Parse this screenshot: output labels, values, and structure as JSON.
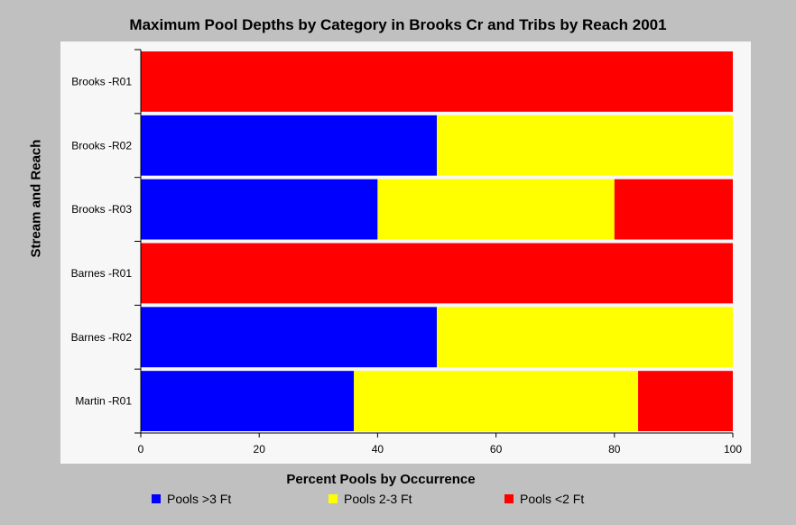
{
  "chart_data": {
    "type": "bar",
    "orientation": "horizontal",
    "stacked": true,
    "title": "Maximum Pool Depths by Category in Brooks Cr and Tribs by Reach 2001",
    "xlabel": "Percent Pools by Occurrence",
    "ylabel": "Stream and Reach",
    "xlim": [
      0,
      100
    ],
    "xticks": [
      0,
      20,
      40,
      60,
      80,
      100
    ],
    "categories": [
      "Brooks -R01",
      "Brooks -R02",
      "Brooks -R03",
      "Barnes -R01",
      "Barnes -R02",
      "Martin -R01"
    ],
    "series": [
      {
        "name": "Pools >3 Ft",
        "color": "#0000ff",
        "values": [
          0,
          50,
          40,
          0,
          50,
          36
        ]
      },
      {
        "name": "Pools 2-3 Ft",
        "color": "#ffff00",
        "values": [
          0,
          50,
          40,
          0,
          50,
          48
        ]
      },
      {
        "name": "Pools <2 Ft",
        "color": "#ff0000",
        "values": [
          100,
          0,
          20,
          100,
          0,
          16
        ]
      }
    ],
    "legend_position": "bottom",
    "grid": false
  }
}
